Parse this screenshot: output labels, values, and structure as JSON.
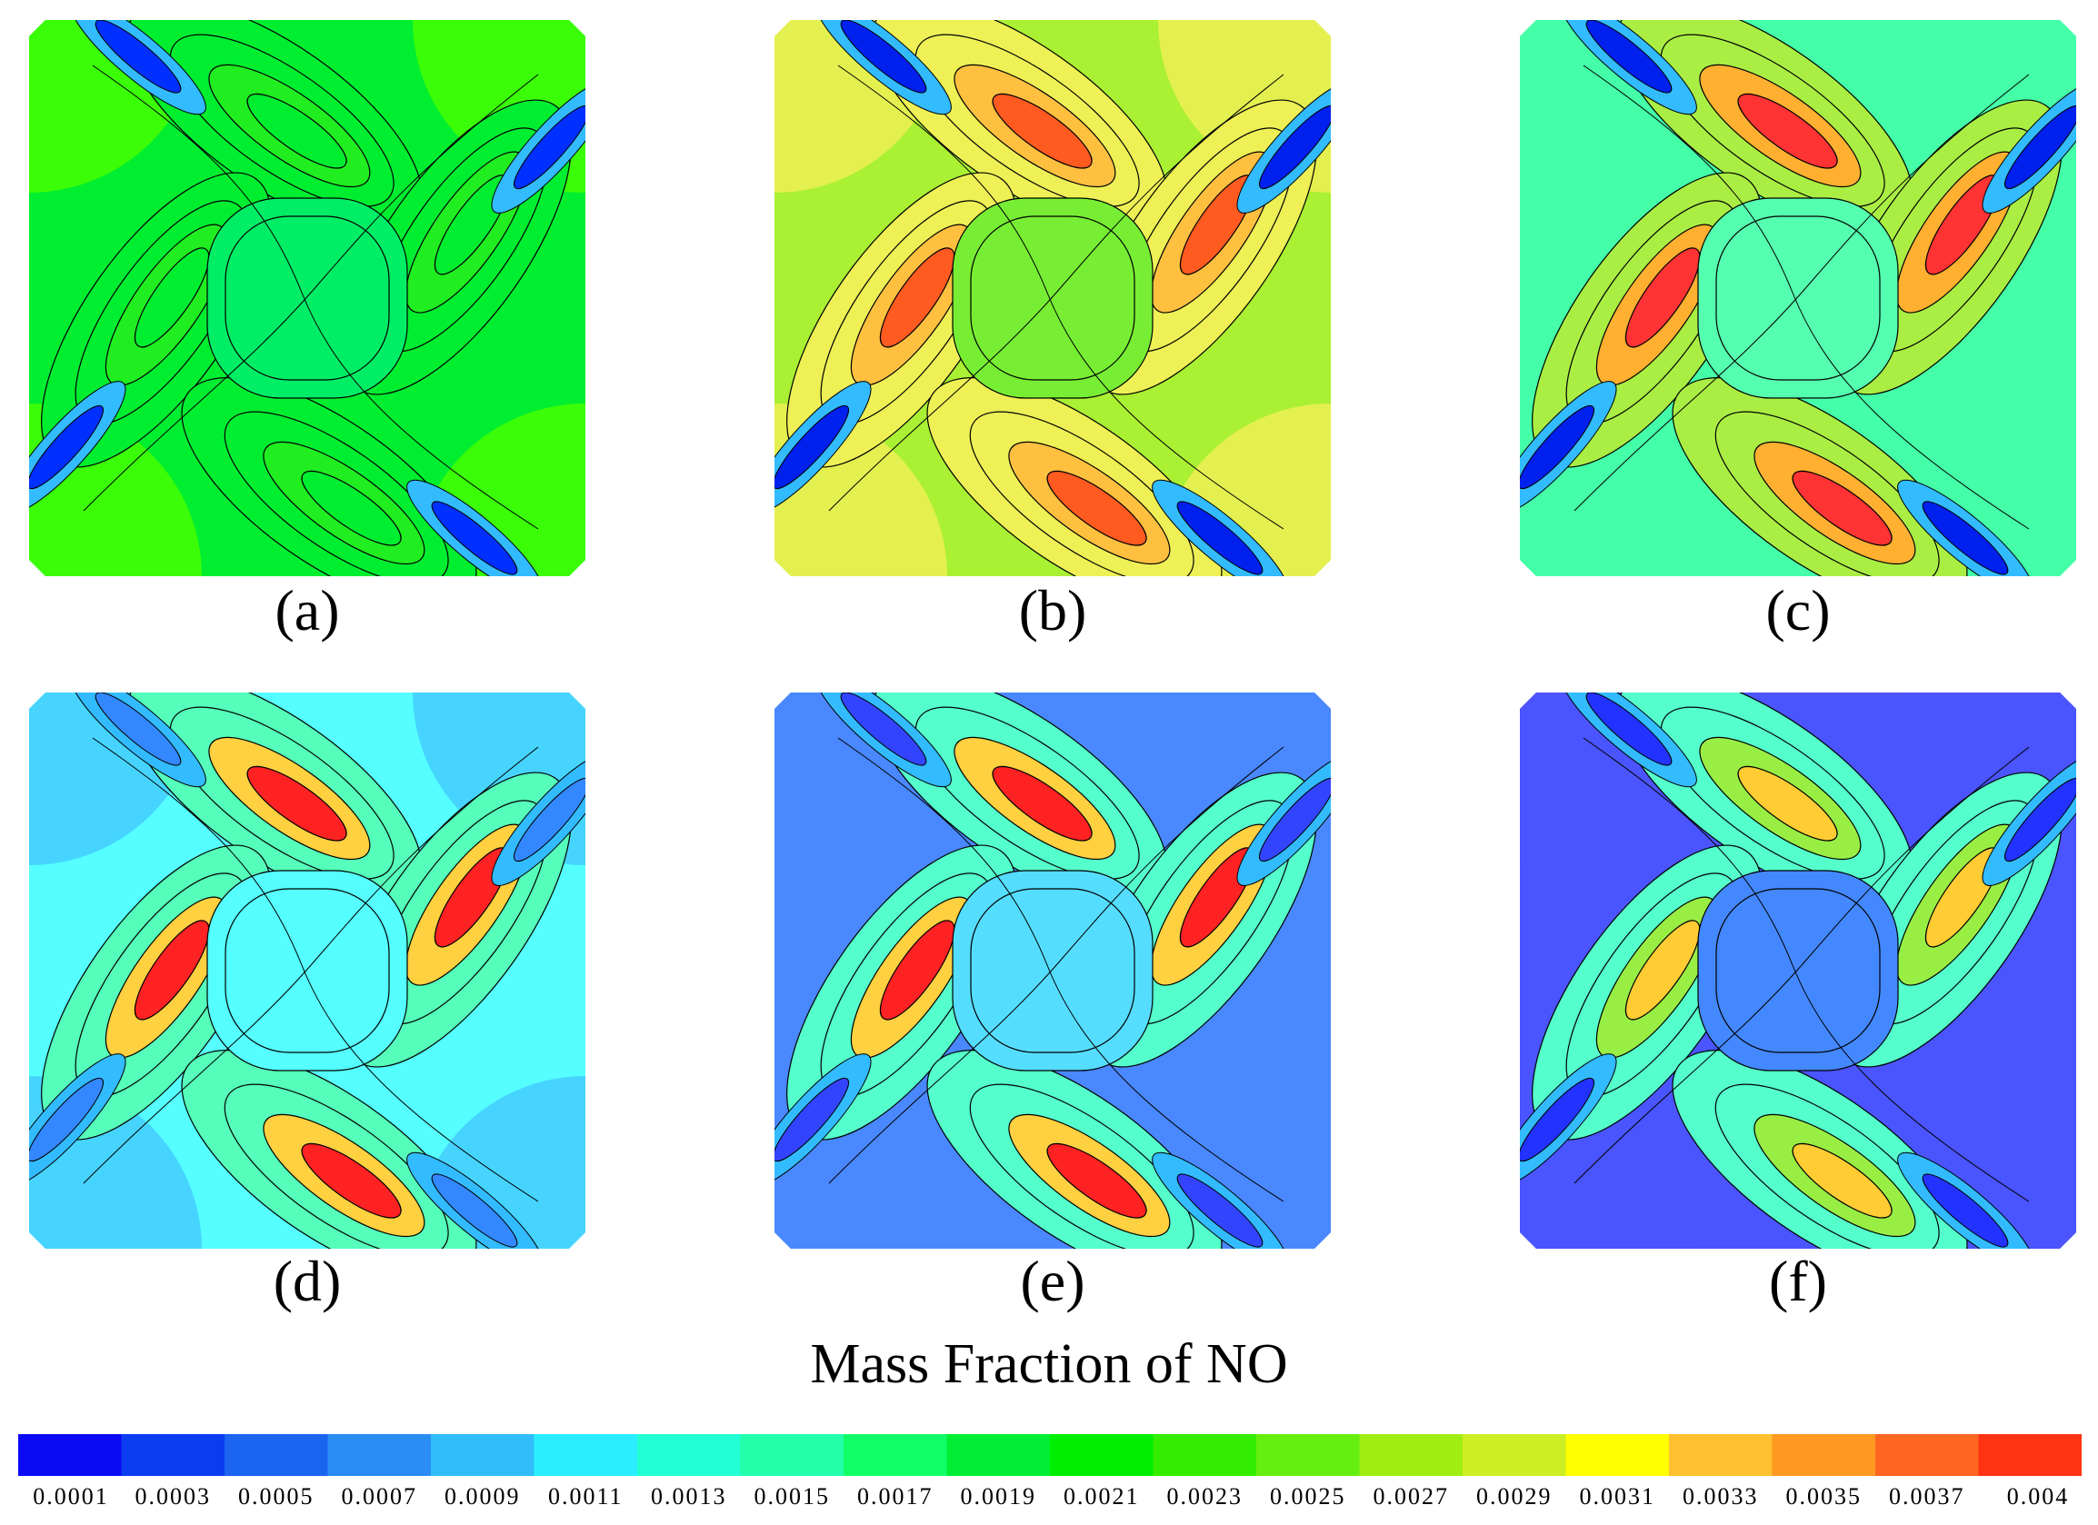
{
  "panels": [
    {
      "label": "(a)",
      "bg": "#00ee30",
      "center": "#00ee66",
      "lobe_color": "#00ee30",
      "peak_color": "#00ee30",
      "inner_lobe": "#20ee20",
      "edge_color": "#0030ff",
      "corner": "#44ff00"
    },
    {
      "label": "(b)",
      "bg": "#aaf033",
      "center": "#77ee33",
      "lobe_color": "#eef055",
      "peak_color": "#ff5a20",
      "inner_lobe": "#ffc040",
      "edge_color": "#0020ee",
      "corner": "#eef055"
    },
    {
      "label": "(c)",
      "bg": "#44ffa8",
      "center": "#55ffb0",
      "lobe_color": "#aaee44",
      "peak_color": "#ff3333",
      "inner_lobe": "#ffb030",
      "edge_color": "#0020ee",
      "corner": "#44ffa8"
    },
    {
      "label": "(d)",
      "bg": "#55ffff",
      "center": "#55ffff",
      "lobe_color": "#55ffbb",
      "peak_color": "#ff2222",
      "inner_lobe": "#ffd040",
      "edge_color": "#3388ff",
      "corner": "#44ccff"
    },
    {
      "label": "(e)",
      "bg": "#4a88ff",
      "center": "#55ddff",
      "lobe_color": "#55ffcc",
      "peak_color": "#ff2222",
      "inner_lobe": "#ffd040",
      "edge_color": "#3344ff",
      "corner": "#4a88ff"
    },
    {
      "label": "(f)",
      "bg": "#4a55ff",
      "center": "#4488ff",
      "lobe_color": "#55ffcc",
      "peak_color": "#ffcc33",
      "inner_lobe": "#99ee44",
      "edge_color": "#2233ff",
      "corner": "#4a55ff"
    }
  ],
  "colorbar": {
    "title": "Mass Fraction of NO",
    "colors": [
      "#0a0af5",
      "#0a3cf0",
      "#1a64f0",
      "#2a8cf5",
      "#30bdfa",
      "#2aeeff",
      "#22ffd4",
      "#22ffaa",
      "#11ff66",
      "#00ee33",
      "#00ee00",
      "#33ee00",
      "#66ee11",
      "#a0ee11",
      "#ccee22",
      "#ffff00",
      "#ffc030",
      "#ff9922",
      "#ff6622",
      "#ff3311"
    ],
    "ticks": [
      "0.0001",
      "0.0003",
      "0.0005",
      "0.0007",
      "0.0009",
      "0.0011",
      "0.0013",
      "0.0015",
      "0.0017",
      "0.0019",
      "0.0021",
      "0.0023",
      "0.0025",
      "0.0027",
      "0.0029",
      "0.0031",
      "0.0033",
      "0.0035",
      "0.0037",
      "0.004"
    ],
    "range": [
      0.0001,
      0.004
    ]
  }
}
